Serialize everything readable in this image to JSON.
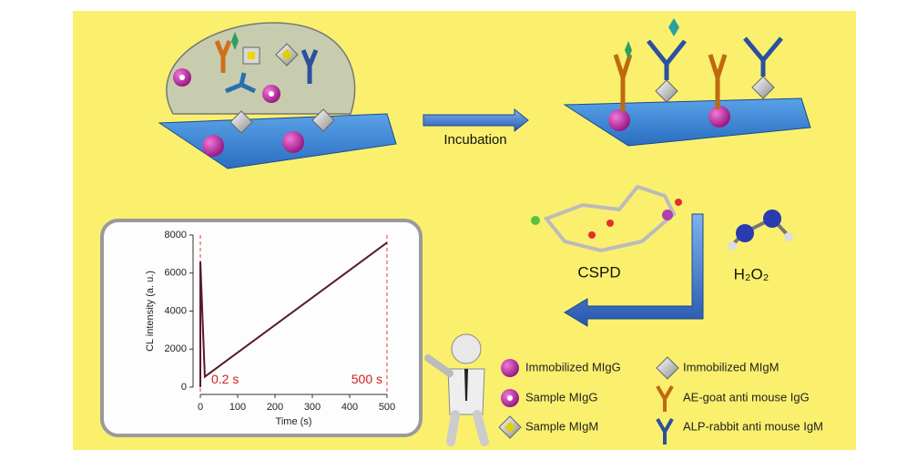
{
  "diagram": {
    "incubation": "Incubation",
    "cspd": "CSPD",
    "h2o2": "H₂O₂",
    "legend": [
      "Immobilized MIgG",
      "Sample MIgG",
      "Sample MIgM",
      "Immobilized MIgM",
      "AE-goat anti mouse IgG",
      "ALP-rabbit anti mouse IgM"
    ]
  },
  "chart_data": {
    "type": "line",
    "xlabel": "Time (s)",
    "ylabel": "CL intensity (a. u.)",
    "x": [
      0,
      0,
      12,
      500
    ],
    "series": [
      {
        "color": "#5a1a2e",
        "values": [
          0,
          6600,
          550,
          7600
        ]
      }
    ],
    "xlim": [
      0,
      500
    ],
    "xticks": [
      0,
      100,
      200,
      300,
      400,
      500
    ],
    "ylim": [
      0,
      8000
    ],
    "yticks": [
      0,
      2000,
      4000,
      6000,
      8000
    ],
    "annotations": [
      {
        "label": "0.2 s",
        "x": 0
      },
      {
        "label": "500 s",
        "x": 500
      }
    ]
  }
}
